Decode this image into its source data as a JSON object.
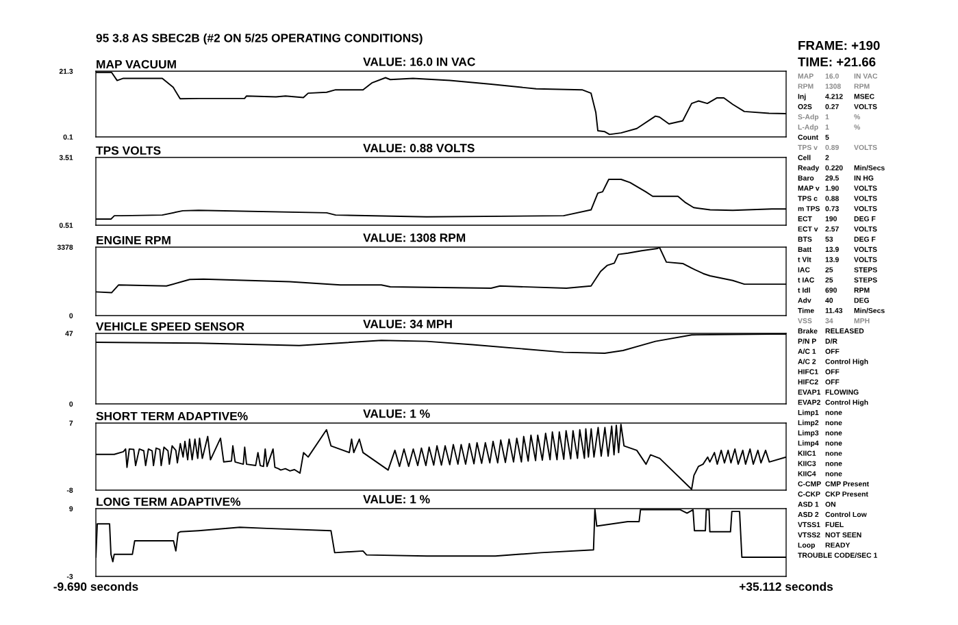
{
  "chart_data": [
    {
      "type": "line",
      "title": "MAP VACUUM",
      "subtitle": "VALUE: 16.0 IN VAC",
      "annotations": [
        "95 3.8 AS SBEC2B (#2 ON 5/25 OPERATING CONDITIONS)"
      ],
      "xlim": [
        -9.69,
        35.112
      ],
      "ylim": [
        0.1,
        21.3
      ],
      "yticks": [
        0.1,
        21.3
      ],
      "tick_labels": "y",
      "series": [
        {
          "color": "#000000",
          "x": [
            -9.69,
            -8.67,
            -8.31,
            -7.91,
            -5.38,
            -4.67,
            -4.22,
            -3.02,
            -0.04,
            0.09,
            2.0,
            2.62,
            3.78,
            4.09,
            5.29,
            5.87,
            7.65,
            8.22,
            9.11,
            9.42,
            10.89,
            13.29,
            15.96,
            18.89,
            21.87,
            22.45,
            22.76,
            22.89,
            23.34,
            23.65,
            24.4,
            25.42,
            26.63,
            26.89,
            27.51,
            28.4,
            28.98,
            29.43,
            30.0,
            30.63,
            31.07,
            31.65,
            32.4,
            34.0,
            35.11
          ],
          "values": [
            20.9,
            20.9,
            18.3,
            19.0,
            19.0,
            16.1,
            12.4,
            12.5,
            12.5,
            13.3,
            13.0,
            13.3,
            12.8,
            14.2,
            14.5,
            15.3,
            15.3,
            17.5,
            19.2,
            18.6,
            19.0,
            18.3,
            17.1,
            15.6,
            15.3,
            14.2,
            8.0,
            2.1,
            1.8,
            0.9,
            1.4,
            2.8,
            6.8,
            6.5,
            4.3,
            5.3,
            10.9,
            11.7,
            10.9,
            12.7,
            12.7,
            10.6,
            8.3,
            7.7,
            7.6
          ]
        }
      ]
    },
    {
      "type": "line",
      "title": "TPS VOLTS",
      "subtitle": "VALUE: 0.88 VOLTS",
      "xlim": [
        -9.69,
        35.112
      ],
      "ylim": [
        0.51,
        3.51
      ],
      "yticks": [
        0.51,
        3.51
      ],
      "tick_labels": "y",
      "series": [
        {
          "color": "#000000",
          "x": [
            -9.69,
            -8.71,
            -8.49,
            -8.05,
            -5.38,
            -4.05,
            -3.02,
            5.29,
            5.87,
            11.78,
            20.67,
            22.45,
            22.89,
            23.2,
            23.6,
            24.4,
            24.98,
            26.0,
            26.45,
            28.09,
            28.54,
            29.11,
            30.18,
            31.65,
            34.18,
            35.11
          ],
          "values": [
            0.78,
            0.78,
            0.93,
            0.93,
            0.96,
            1.15,
            1.17,
            1.06,
            0.96,
            0.88,
            0.93,
            1.19,
            1.93,
            1.99,
            2.54,
            2.54,
            2.4,
            1.99,
            1.79,
            1.79,
            1.53,
            1.29,
            1.19,
            1.17,
            1.23,
            1.23
          ]
        }
      ]
    },
    {
      "type": "line",
      "title": "ENGINE RPM",
      "subtitle": "VALUE: 1308 RPM",
      "xlim": [
        -9.69,
        35.112
      ],
      "ylim": [
        0,
        3378
      ],
      "yticks": [
        0,
        3378
      ],
      "tick_labels": "y",
      "series": [
        {
          "color": "#000000",
          "x": [
            -9.69,
            -8.67,
            -8.22,
            -5.11,
            -3.6,
            -2.71,
            2.89,
            6.18,
            8.84,
            9.42,
            15.96,
            16.54,
            20.85,
            22.45,
            23.07,
            23.51,
            23.96,
            24.22,
            24.85,
            25.74,
            26.76,
            26.89,
            27.34,
            28.4,
            28.98,
            29.74,
            30.18,
            31.65,
            32.4,
            34.0,
            35.11
          ],
          "values": [
            1170,
            1130,
            1510,
            1460,
            1780,
            1800,
            1670,
            1510,
            1510,
            1420,
            1350,
            1460,
            1350,
            1460,
            2180,
            2480,
            2590,
            3020,
            3080,
            3200,
            3310,
            3370,
            2640,
            2570,
            2340,
            2070,
            1960,
            1730,
            1550,
            1550,
            1550
          ]
        }
      ]
    },
    {
      "type": "line",
      "title": "VEHICLE SPEED SENSOR",
      "subtitle": "VALUE: 34 MPH",
      "xlim": [
        -9.69,
        35.112
      ],
      "ylim": [
        0,
        47
      ],
      "yticks": [
        0,
        47
      ],
      "tick_labels": "y",
      "series": [
        {
          "color": "#000000",
          "x": [
            -9.69,
            -3.02,
            3.51,
            8.84,
            11.78,
            14.76,
            20.67,
            23.34,
            24.53,
            26.63,
            28.98,
            34.18,
            35.11
          ],
          "values": [
            41.1,
            40.5,
            38.9,
            42.3,
            41.7,
            39.5,
            34.4,
            33.8,
            35.6,
            41.7,
            46.0,
            46.5,
            46.5
          ]
        }
      ]
    },
    {
      "type": "line",
      "title": "SHORT TERM ADAPTIVE%",
      "subtitle": "VALUE: 1 %",
      "xlim": [
        -9.69,
        35.112
      ],
      "ylim": [
        -8,
        7
      ],
      "yticks": [
        -8,
        7
      ],
      "tick_labels": "y",
      "series": [
        {
          "color": "#000000",
          "x": [
            -9.69,
            -8.5,
            -7.91,
            -7.76,
            -7.67,
            -7.52,
            -7.23,
            -7.11,
            -6.87,
            -6.58,
            -6.46,
            -6.28,
            -6.04,
            -5.95,
            -5.78,
            -5.54,
            -5.45,
            -5.27,
            -5.01,
            -4.92,
            -4.74,
            -4.5,
            -4.4,
            -4.21,
            -4.03,
            -3.91,
            -3.73,
            -3.61,
            -3.44,
            -3.26,
            -3.08,
            -2.96,
            -2.78,
            -2.43,
            -2.25,
            -1.6,
            -1.39,
            -0.89,
            -0.8,
            -0.65,
            -0.12,
            -0.03,
            0.09,
            0.68,
            0.83,
            0.98,
            1.19,
            1.3,
            1.42,
            1.81,
            1.93,
            2.16,
            2.31,
            2.61,
            2.91,
            3.2,
            3.56,
            3.79,
            4.09,
            5.28,
            5.57,
            6.76,
            6.91,
            7.05,
            7.41,
            7.65,
            9.28,
            9.72,
            10.02,
            10.31,
            10.61,
            10.91,
            11.2,
            11.44,
            11.73,
            11.94,
            12.24,
            12.45,
            12.74,
            12.98,
            13.28,
            13.51,
            13.81,
            14.02,
            14.31,
            14.55,
            14.85,
            15.05,
            15.35,
            15.59,
            15.88,
            16.09,
            16.39,
            16.59,
            16.89,
            17.13,
            17.42,
            17.63,
            17.93,
            18.08,
            18.37,
            18.55,
            18.85,
            18.99,
            19.29,
            19.5,
            19.79,
            19.94,
            20.24,
            20.39,
            20.68,
            20.83,
            21.13,
            21.28,
            21.57,
            21.72,
            22.02,
            22.11,
            22.28,
            22.46,
            22.64,
            22.91,
            23.11,
            23.35,
            23.56,
            23.79,
            23.94,
            24.09,
            24.24,
            24.39,
            24.59,
            25.42,
            26.02,
            26.31,
            26.91,
            28.98,
            29.13,
            29.42,
            29.72,
            30.02,
            30.16,
            30.46,
            30.64,
            30.9,
            31.11,
            31.35,
            31.53,
            31.79,
            32.0,
            32.3,
            32.48,
            32.77,
            32.98,
            33.28,
            33.48,
            33.78,
            34.02,
            35.11
          ],
          "values": [
            0.0,
            0.0,
            0.6,
            1.2,
            -2.9,
            1.2,
            1.1,
            -2.5,
            1.2,
            0.8,
            -2.5,
            1.2,
            0.8,
            -2.5,
            1.4,
            1.1,
            -2.5,
            1.6,
            0.8,
            -2.2,
            1.9,
            0.9,
            -1.9,
            2.4,
            -0.6,
            2.9,
            -1.2,
            3.4,
            -1.2,
            3.4,
            -0.9,
            3.6,
            -0.9,
            4.0,
            -1.2,
            3.6,
            -1.7,
            -1.5,
            1.9,
            -1.7,
            -2.2,
            1.6,
            -2.2,
            -2.5,
            0.4,
            -2.5,
            -2.7,
            1.2,
            -2.7,
            1.2,
            -2.9,
            -3.2,
            -3.5,
            -3.2,
            -3.7,
            -3.4,
            -4.2,
            0.4,
            -0.6,
            5.5,
            1.9,
            0.4,
            3.4,
            0.4,
            3.4,
            0.4,
            -3.5,
            0.9,
            -2.7,
            1.2,
            -2.7,
            1.2,
            -2.5,
            1.4,
            -2.5,
            1.6,
            -2.4,
            1.9,
            -2.4,
            1.9,
            -2.3,
            2.2,
            -2.2,
            2.2,
            -2.2,
            2.4,
            -2.1,
            2.6,
            -2.0,
            2.6,
            -1.9,
            2.9,
            -1.9,
            3.2,
            -1.8,
            3.4,
            -1.7,
            3.6,
            -1.7,
            4.0,
            -1.5,
            4.3,
            -1.4,
            4.3,
            -1.3,
            4.7,
            -1.2,
            5.0,
            -1.2,
            5.0,
            -1.1,
            5.3,
            -1.0,
            5.3,
            -0.9,
            5.5,
            -0.9,
            5.7,
            -0.6,
            5.7,
            -0.6,
            6.0,
            -0.4,
            6.0,
            -0.4,
            6.3,
            -0.1,
            6.5,
            0.4,
            6.7,
            1.9,
            0.9,
            -2.2,
            -0.1,
            -0.9,
            -7.8,
            -4.7,
            -2.7,
            -2.2,
            -0.6,
            -1.7,
            0.4,
            -2.2,
            0.9,
            -1.9,
            0.9,
            -1.9,
            1.2,
            -2.2,
            0.9,
            -2.2,
            1.2,
            -2.2,
            0.9,
            -1.9,
            0.9,
            -1.7,
            -0.6
          ]
        }
      ]
    },
    {
      "type": "line",
      "title": "LONG TERM ADAPTIVE%",
      "subtitle": "VALUE: 1 %",
      "xlim": [
        -9.69,
        35.112
      ],
      "xticks": [
        {
          "value": -9.69,
          "label": "-9.690 seconds"
        },
        {
          "value": 35.112,
          "label": "+35.112 seconds"
        }
      ],
      "ylim": [
        -3,
        9
      ],
      "yticks": [
        -3,
        9
      ],
      "series": [
        {
          "color": "#000000",
          "x": [
            -9.69,
            -9.6,
            -8.8,
            -8.71,
            -8.59,
            -8.5,
            -7.32,
            -7.17,
            -4.65,
            -4.5,
            -4.35,
            -4.21,
            -3.02,
            -0.35,
            1.42,
            5.57,
            5.81,
            7.65,
            7.88,
            11.79,
            16.24,
            17.72,
            19.2,
            22.61,
            22.7,
            22.82,
            24.83,
            25.57,
            25.66,
            28.24,
            28.68,
            29.07,
            29.16,
            29.87,
            29.93,
            30.11,
            30.16,
            31.5,
            31.59,
            32.09,
            32.24,
            34.02,
            35.11
          ],
          "values": [
            0.4,
            6.3,
            6.3,
            0.9,
            -0.4,
            0.9,
            0.9,
            3.3,
            3.3,
            1.5,
            4.7,
            4.9,
            5.1,
            5.7,
            5.5,
            5.1,
            1.2,
            1.5,
            0.8,
            0.6,
            0.6,
            0.9,
            1.2,
            1.7,
            8.9,
            5.9,
            6.7,
            6.7,
            8.8,
            8.8,
            8.2,
            8.8,
            5.1,
            5.1,
            8.8,
            8.8,
            4.9,
            4.9,
            8.5,
            8.5,
            0.4,
            0.4,
            0.4
          ]
        }
      ]
    },
    {
      "type": "other",
      "title": "FRAME: +190",
      "subtitle": "TIME: +21.66",
      "y_categories": [
        "MAP",
        "RPM",
        "Inj",
        "O2S",
        "S-Adp",
        "L-Adp",
        "Count",
        "TPS v",
        "Cell",
        "Ready",
        "Baro",
        "MAP v",
        "TPS c",
        "m TPS",
        "ECT",
        "ECT v",
        "BTS",
        "Batt",
        "t Vlt",
        "IAC",
        "t IAC",
        "t Idl",
        "Adv",
        "Time",
        "VSS",
        "Brake",
        "P/N P",
        "A/C 1",
        "A/C 2",
        "HIFC1",
        "HIFC2",
        "EVAP1",
        "EVAP2",
        "Limp1",
        "Limp2",
        "Limp3",
        "Limp4",
        "KIIC1",
        "KIIC3",
        "KIIC4",
        "C-CMP",
        "C-CKP",
        "ASD 1",
        "ASD 2",
        "VTSS1",
        "VTSS2",
        "Loop",
        "TROUBLE CODE/SEC 1"
      ],
      "cell_labels": [
        [
          "16.0",
          "IN VAC"
        ],
        [
          "1308",
          "RPM"
        ],
        [
          "4.212",
          "MSEC"
        ],
        [
          "0.27",
          "VOLTS"
        ],
        [
          "1",
          "%"
        ],
        [
          "1",
          "%"
        ],
        [
          "5",
          null
        ],
        [
          "0.89",
          "VOLTS"
        ],
        [
          "2",
          null
        ],
        [
          "0.220",
          "Min/Secs"
        ],
        [
          "29.5",
          "IN HG"
        ],
        [
          "1.90",
          "VOLTS"
        ],
        [
          "0.88",
          "VOLTS"
        ],
        [
          "0.73",
          "VOLTS"
        ],
        [
          "190",
          "DEG F"
        ],
        [
          "2.57",
          "VOLTS"
        ],
        [
          "53",
          "DEG F"
        ],
        [
          "13.9",
          "VOLTS"
        ],
        [
          "13.9",
          "VOLTS"
        ],
        [
          "25",
          "STEPS"
        ],
        [
          "25",
          "STEPS"
        ],
        [
          "690",
          "RPM"
        ],
        [
          "40",
          "DEG"
        ],
        [
          "11.43",
          "Min/Secs"
        ],
        [
          "34",
          "MPH"
        ],
        [
          "RELEASED",
          null
        ],
        [
          "D/R",
          null
        ],
        [
          "OFF",
          null
        ],
        [
          "Control High",
          null
        ],
        [
          "OFF",
          null
        ],
        [
          "OFF",
          null
        ],
        [
          "FLOWING",
          null
        ],
        [
          "Control High",
          null
        ],
        [
          "none",
          null
        ],
        [
          "none",
          null
        ],
        [
          "none",
          null
        ],
        [
          "none",
          null
        ],
        [
          "none",
          null
        ],
        [
          "none",
          null
        ],
        [
          "none",
          null
        ],
        [
          "CMP Present",
          null
        ],
        [
          "CKP Present",
          null
        ],
        [
          "ON",
          null
        ],
        [
          "Control Low",
          null
        ],
        [
          "FUEL",
          null
        ],
        [
          "NOT SEEN",
          null
        ],
        [
          "READY",
          null
        ],
        [
          null,
          null
        ]
      ],
      "colors": [
        "#8a8a8a",
        "#8a8a8a",
        "#000000",
        "#000000",
        "#8a8a8a",
        "#8a8a8a",
        "#000000",
        "#8a8a8a",
        "#000000",
        "#000000",
        "#000000",
        "#000000",
        "#000000",
        "#000000",
        "#000000",
        "#000000",
        "#000000",
        "#000000",
        "#000000",
        "#000000",
        "#000000",
        "#000000",
        "#000000",
        "#000000",
        "#8a8a8a",
        "#000000",
        "#000000",
        "#000000",
        "#000000",
        "#000000",
        "#000000",
        "#000000",
        "#000000",
        "#000000",
        "#000000",
        "#000000",
        "#000000",
        "#000000",
        "#000000",
        "#000000",
        "#000000",
        "#000000",
        "#000000",
        "#000000",
        "#000000",
        "#000000",
        "#000000",
        "#000000"
      ]
    }
  ]
}
